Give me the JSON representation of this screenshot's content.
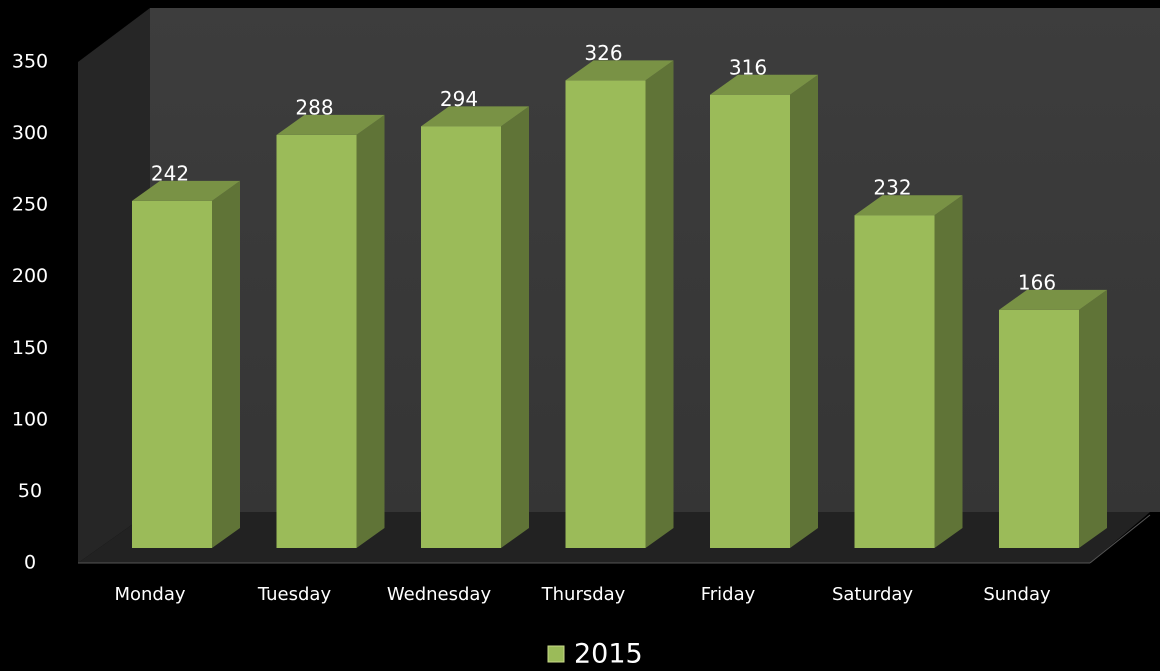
{
  "chart_data": {
    "type": "bar",
    "categories": [
      "Monday",
      "Tuesday",
      "Wednesday",
      "Thursday",
      "Friday",
      "Saturday",
      "Sunday"
    ],
    "series": [
      {
        "name": "2015",
        "color": "#9bbb59",
        "values": [
          242,
          288,
          294,
          326,
          316,
          232,
          166
        ]
      }
    ],
    "ylim": [
      0,
      350
    ],
    "yticks": [
      0,
      50,
      100,
      150,
      200,
      250,
      300,
      350
    ],
    "grid": false,
    "legend": "bottom"
  }
}
